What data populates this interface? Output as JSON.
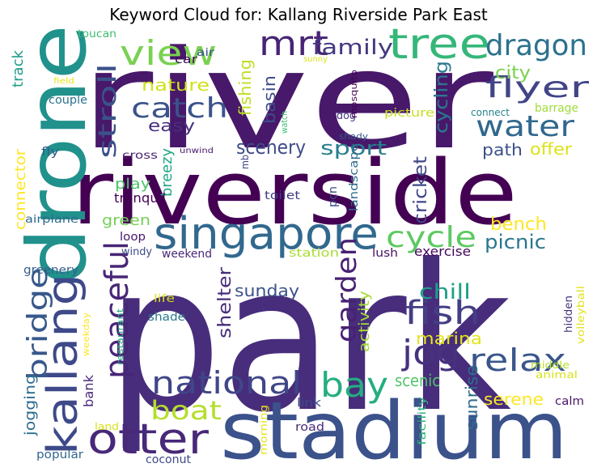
{
  "title": "Keyword Cloud for: Kallang Riverside Park East",
  "words": [
    {
      "text": "river",
      "color": "#48186a"
    },
    {
      "text": "park",
      "color": "#472d7b"
    },
    {
      "text": "riverside",
      "color": "#440154"
    },
    {
      "text": "drone",
      "color": "#21918c"
    },
    {
      "text": "stadium",
      "color": "#3b528b"
    },
    {
      "text": "kallang",
      "color": "#3e4989"
    },
    {
      "text": "singapore",
      "color": "#31688e"
    },
    {
      "text": "tree",
      "color": "#35b779"
    },
    {
      "text": "otter",
      "color": "#482878"
    },
    {
      "text": "view",
      "color": "#7ad151"
    },
    {
      "text": "mrt",
      "color": "#482475"
    },
    {
      "text": "dragon",
      "color": "#2c728e"
    },
    {
      "text": "flyer",
      "color": "#414487"
    },
    {
      "text": "water",
      "color": "#31688e"
    },
    {
      "text": "catch",
      "color": "#3b528b"
    },
    {
      "text": "peaceful",
      "color": "#482677"
    },
    {
      "text": "national",
      "color": "#404688"
    },
    {
      "text": "bay",
      "color": "#26ad81"
    },
    {
      "text": "bridge",
      "color": "#38588c"
    },
    {
      "text": "jog",
      "color": "#46327e"
    },
    {
      "text": "fish",
      "color": "#433e85"
    },
    {
      "text": "cycle",
      "color": "#5ec962"
    },
    {
      "text": "relax",
      "color": "#39568c"
    },
    {
      "text": "garden",
      "color": "#482173"
    },
    {
      "text": "boat",
      "color": "#b5de2b"
    },
    {
      "text": "stroll",
      "color": "#3b528b"
    },
    {
      "text": "family",
      "color": "#453882"
    },
    {
      "text": "scenery",
      "color": "#3e4a89"
    },
    {
      "text": "sport",
      "color": "#277f8e"
    },
    {
      "text": "chill",
      "color": "#1fa088"
    },
    {
      "text": "nature",
      "color": "#d0e11c"
    },
    {
      "text": "easy",
      "color": "#46307e"
    },
    {
      "text": "fishing",
      "color": "#bddf26"
    },
    {
      "text": "basin",
      "color": "#3e4c8a"
    },
    {
      "text": "cycling",
      "color": "#2a788e"
    },
    {
      "text": "city",
      "color": "#7ad151"
    },
    {
      "text": "path",
      "color": "#3b518b"
    },
    {
      "text": "offer",
      "color": "#dde318"
    },
    {
      "text": "cricket",
      "color": "#3f4788"
    },
    {
      "text": "picnic",
      "color": "#2a768e"
    },
    {
      "text": "bench",
      "color": "#fde725"
    },
    {
      "text": "shelter",
      "color": "#472c7a"
    },
    {
      "text": "sunday",
      "color": "#3b518b"
    },
    {
      "text": "activity",
      "color": "#a5db36"
    },
    {
      "text": "marina",
      "color": "#e5e419"
    },
    {
      "text": "scenic",
      "color": "#52c569"
    },
    {
      "text": "sunrise",
      "color": "#2f6b8e"
    },
    {
      "text": "serene",
      "color": "#fde725"
    },
    {
      "text": "jogging",
      "color": "#2e6d8e"
    },
    {
      "text": "bank",
      "color": "#472a7a"
    },
    {
      "text": "green",
      "color": "#73d056"
    },
    {
      "text": "play",
      "color": "#4ec36b"
    },
    {
      "text": "breezy",
      "color": "#21a685"
    },
    {
      "text": "connector",
      "color": "#fde725"
    },
    {
      "text": "track",
      "color": "#1e9b8a"
    },
    {
      "text": "exercise",
      "color": "#46085c"
    },
    {
      "text": "tranquil",
      "color": "#440154"
    },
    {
      "text": "landscape",
      "color": "#2f6c8e"
    },
    {
      "text": "pcn",
      "color": "#3e4989"
    },
    {
      "text": "toilet",
      "color": "#433d84"
    },
    {
      "text": "cross",
      "color": "#482071"
    },
    {
      "text": "mb",
      "color": "#404688"
    },
    {
      "text": "unwind",
      "color": "#481a6c"
    },
    {
      "text": "dog",
      "color": "#453781"
    },
    {
      "text": "watch",
      "color": "#3dbc74"
    },
    {
      "text": "mosquito",
      "color": "#440154"
    },
    {
      "text": "picture",
      "color": "#c8e020"
    },
    {
      "text": "connect",
      "color": "#26828e"
    },
    {
      "text": "barrage",
      "color": "#a0da39"
    },
    {
      "text": "shady",
      "color": "#38598c"
    },
    {
      "text": "car",
      "color": "#460b5e"
    },
    {
      "text": "air",
      "color": "#3b528b"
    },
    {
      "text": "sunny",
      "color": "#dde318"
    },
    {
      "text": "field",
      "color": "#e5e419"
    },
    {
      "text": "couple",
      "color": "#2c718e"
    },
    {
      "text": "fly",
      "color": "#365c8d"
    },
    {
      "text": "toucan",
      "color": "#3fbc73"
    },
    {
      "text": "calm",
      "color": "#481467"
    },
    {
      "text": "airplane",
      "color": "#30698e"
    },
    {
      "text": "loop",
      "color": "#481769"
    },
    {
      "text": "windy",
      "color": "#3e4a89"
    },
    {
      "text": "weekend",
      "color": "#482878"
    },
    {
      "text": "station",
      "color": "#aadc32"
    },
    {
      "text": "lush",
      "color": "#471063"
    },
    {
      "text": "greenery",
      "color": "#355e8d"
    },
    {
      "text": "life",
      "color": "#dae319"
    },
    {
      "text": "shade",
      "color": "#2a788e"
    },
    {
      "text": "weekday",
      "color": "#fde725"
    },
    {
      "text": "restaurant",
      "color": "#26ad81"
    },
    {
      "text": "hidden",
      "color": "#46337f"
    },
    {
      "text": "volleyball",
      "color": "#e2e418"
    },
    {
      "text": "middle",
      "color": "#b8de29"
    },
    {
      "text": "animal",
      "color": "#d8e219"
    },
    {
      "text": "facility",
      "color": "#2db27d"
    },
    {
      "text": "link",
      "color": "#3e4a89"
    },
    {
      "text": "road",
      "color": "#472c7a"
    },
    {
      "text": "morning",
      "color": "#e7e419"
    },
    {
      "text": "land",
      "color": "#d8e219"
    },
    {
      "text": "popular",
      "color": "#31688e"
    },
    {
      "text": "coconut",
      "color": "#3e4989"
    }
  ]
}
